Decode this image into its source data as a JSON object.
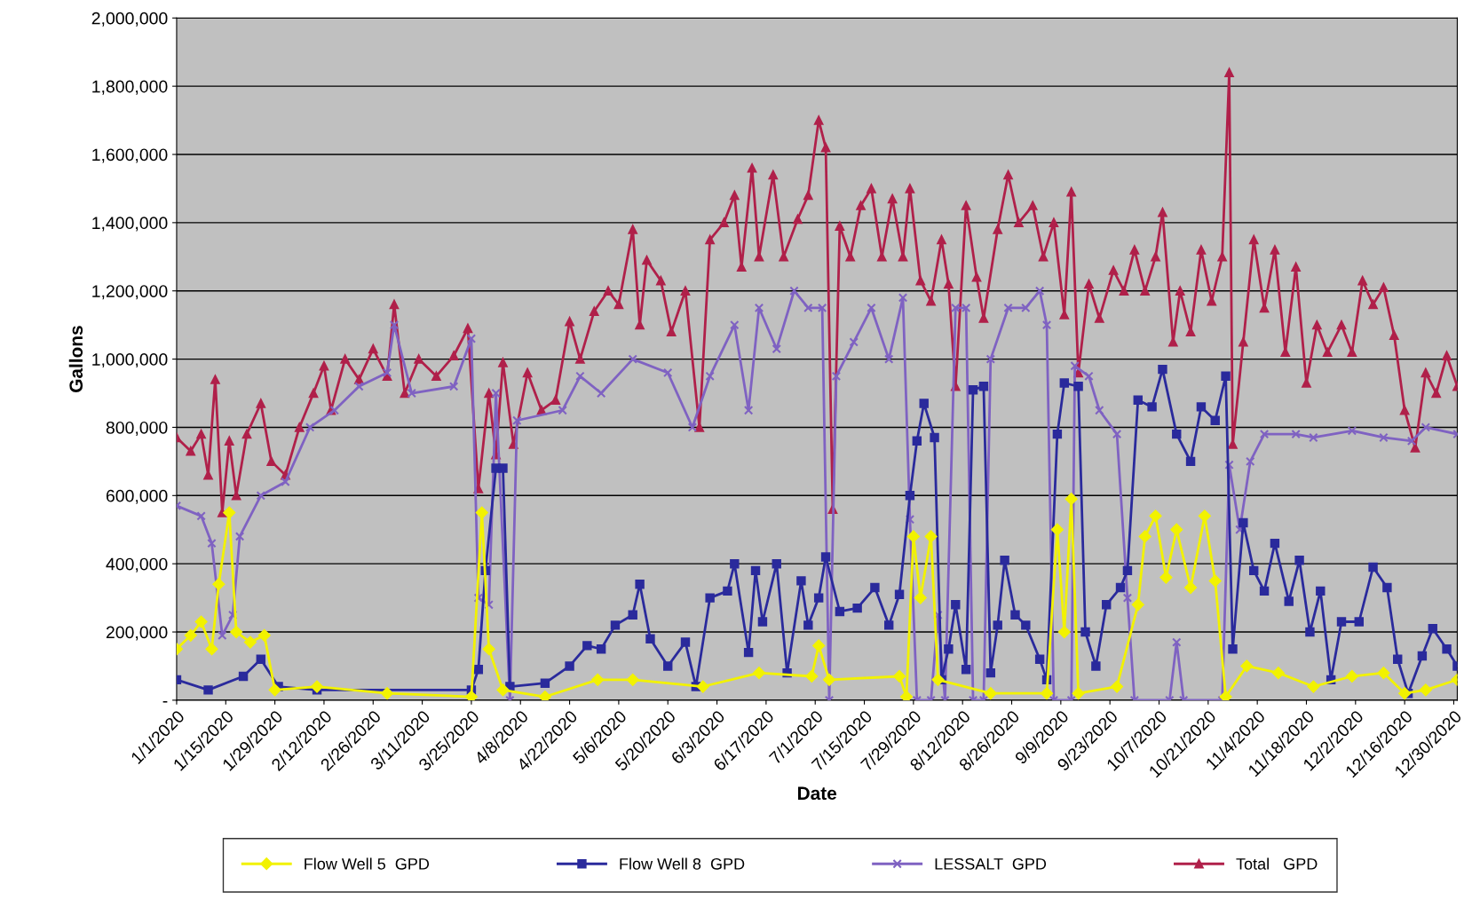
{
  "chart_data": {
    "type": "line",
    "xlabel": "Date",
    "ylabel": "Gallons",
    "grid": "y",
    "legend": "bottom",
    "xlim": [
      "2020-01-01",
      "2020-12-31"
    ],
    "xticks": [
      {
        "value": "2020-01-01",
        "label": "1/1/2020"
      },
      {
        "value": "2020-01-15",
        "label": "1/15/2020"
      },
      {
        "value": "2020-01-29",
        "label": "1/29/2020"
      },
      {
        "value": "2020-02-12",
        "label": "2/12/2020"
      },
      {
        "value": "2020-02-26",
        "label": "2/26/2020"
      },
      {
        "value": "2020-03-11",
        "label": "3/11/2020"
      },
      {
        "value": "2020-03-25",
        "label": "3/25/2020"
      },
      {
        "value": "2020-04-08",
        "label": "4/8/2020"
      },
      {
        "value": "2020-04-22",
        "label": "4/22/2020"
      },
      {
        "value": "2020-05-06",
        "label": "5/6/2020"
      },
      {
        "value": "2020-05-20",
        "label": "5/20/2020"
      },
      {
        "value": "2020-06-03",
        "label": "6/3/2020"
      },
      {
        "value": "2020-06-17",
        "label": "6/17/2020"
      },
      {
        "value": "2020-07-01",
        "label": "7/1/2020"
      },
      {
        "value": "2020-07-15",
        "label": "7/15/2020"
      },
      {
        "value": "2020-07-29",
        "label": "7/29/2020"
      },
      {
        "value": "2020-08-12",
        "label": "8/12/2020"
      },
      {
        "value": "2020-08-26",
        "label": "8/26/2020"
      },
      {
        "value": "2020-09-09",
        "label": "9/9/2020"
      },
      {
        "value": "2020-09-23",
        "label": "9/23/2020"
      },
      {
        "value": "2020-10-07",
        "label": "10/7/2020"
      },
      {
        "value": "2020-10-21",
        "label": "10/21/2020"
      },
      {
        "value": "2020-11-04",
        "label": "11/4/2020"
      },
      {
        "value": "2020-11-18",
        "label": "11/18/2020"
      },
      {
        "value": "2020-12-02",
        "label": "12/2/2020"
      },
      {
        "value": "2020-12-16",
        "label": "12/16/2020"
      },
      {
        "value": "2020-12-30",
        "label": "12/30/2020"
      }
    ],
    "ylim": [
      0,
      2000000
    ],
    "yticks": [
      {
        "value": 0,
        "label": "-"
      },
      {
        "value": 200000,
        "label": "200,000"
      },
      {
        "value": 400000,
        "label": "400,000"
      },
      {
        "value": 600000,
        "label": "600,000"
      },
      {
        "value": 800000,
        "label": "800,000"
      },
      {
        "value": 1000000,
        "label": "1,000,000"
      },
      {
        "value": 1200000,
        "label": "1,200,000"
      },
      {
        "value": 1400000,
        "label": "1,400,000"
      },
      {
        "value": 1600000,
        "label": "1,600,000"
      },
      {
        "value": 1800000,
        "label": "1,800,000"
      },
      {
        "value": 2000000,
        "label": "2,000,000"
      }
    ],
    "series": [
      {
        "name": "Flow Well 5  GPD",
        "color": "#f2f200",
        "marker": "diamond",
        "x": [
          "2020-01-01",
          "2020-01-05",
          "2020-01-08",
          "2020-01-11",
          "2020-01-13",
          "2020-01-16",
          "2020-01-18",
          "2020-01-22",
          "2020-01-26",
          "2020-01-29",
          "2020-02-10",
          "2020-03-01",
          "2020-03-25",
          "2020-03-28",
          "2020-03-30",
          "2020-04-03",
          "2020-04-15",
          "2020-04-30",
          "2020-05-10",
          "2020-05-30",
          "2020-06-15",
          "2020-06-30",
          "2020-07-02",
          "2020-07-05",
          "2020-07-25",
          "2020-07-27",
          "2020-07-29",
          "2020-07-31",
          "2020-08-03",
          "2020-08-05",
          "2020-08-20",
          "2020-09-05",
          "2020-09-08",
          "2020-09-10",
          "2020-09-12",
          "2020-09-14",
          "2020-09-25",
          "2020-10-01",
          "2020-10-03",
          "2020-10-06",
          "2020-10-09",
          "2020-10-12",
          "2020-10-16",
          "2020-10-20",
          "2020-10-23",
          "2020-10-26",
          "2020-11-01",
          "2020-11-10",
          "2020-11-20",
          "2020-12-01",
          "2020-12-10",
          "2020-12-16",
          "2020-12-22",
          "2020-12-31"
        ],
        "values": [
          150000,
          190000,
          230000,
          150000,
          340000,
          550000,
          200000,
          170000,
          190000,
          30000,
          40000,
          20000,
          10000,
          550000,
          150000,
          30000,
          10000,
          60000,
          60000,
          40000,
          80000,
          70000,
          160000,
          60000,
          70000,
          10000,
          480000,
          300000,
          480000,
          60000,
          20000,
          20000,
          500000,
          200000,
          590000,
          20000,
          40000,
          280000,
          480000,
          540000,
          360000,
          500000,
          330000,
          540000,
          350000,
          10000,
          100000,
          80000,
          40000,
          70000,
          80000,
          20000,
          30000,
          60000
        ]
      },
      {
        "name": "Flow Well 8  GPD",
        "color": "#2a2a9c",
        "marker": "square",
        "x": [
          "2020-01-01",
          "2020-01-10",
          "2020-01-20",
          "2020-01-25",
          "2020-01-30",
          "2020-02-10",
          "2020-03-25",
          "2020-03-27",
          "2020-03-29",
          "2020-04-01",
          "2020-04-03",
          "2020-04-05",
          "2020-04-15",
          "2020-04-22",
          "2020-04-27",
          "2020-05-01",
          "2020-05-05",
          "2020-05-10",
          "2020-05-12",
          "2020-05-15",
          "2020-05-20",
          "2020-05-25",
          "2020-05-28",
          "2020-06-01",
          "2020-06-06",
          "2020-06-08",
          "2020-06-12",
          "2020-06-14",
          "2020-06-16",
          "2020-06-20",
          "2020-06-23",
          "2020-06-27",
          "2020-06-29",
          "2020-07-02",
          "2020-07-04",
          "2020-07-08",
          "2020-07-13",
          "2020-07-18",
          "2020-07-22",
          "2020-07-25",
          "2020-07-28",
          "2020-07-30",
          "2020-08-01",
          "2020-08-04",
          "2020-08-06",
          "2020-08-08",
          "2020-08-10",
          "2020-08-13",
          "2020-08-15",
          "2020-08-18",
          "2020-08-20",
          "2020-08-22",
          "2020-08-24",
          "2020-08-27",
          "2020-08-30",
          "2020-09-03",
          "2020-09-05",
          "2020-09-08",
          "2020-09-10",
          "2020-09-14",
          "2020-09-16",
          "2020-09-19",
          "2020-09-22",
          "2020-09-26",
          "2020-09-28",
          "2020-10-01",
          "2020-10-05",
          "2020-10-08",
          "2020-10-12",
          "2020-10-16",
          "2020-10-19",
          "2020-10-23",
          "2020-10-26",
          "2020-10-28",
          "2020-10-31",
          "2020-11-03",
          "2020-11-06",
          "2020-11-09",
          "2020-11-13",
          "2020-11-16",
          "2020-11-19",
          "2020-11-22",
          "2020-11-25",
          "2020-11-28",
          "2020-12-03",
          "2020-12-07",
          "2020-12-11",
          "2020-12-14",
          "2020-12-17",
          "2020-12-21",
          "2020-12-24",
          "2020-12-28",
          "2020-12-31"
        ],
        "values": [
          60000,
          30000,
          70000,
          120000,
          40000,
          30000,
          30000,
          90000,
          380000,
          680000,
          680000,
          40000,
          50000,
          100000,
          160000,
          150000,
          220000,
          250000,
          340000,
          180000,
          100000,
          170000,
          40000,
          300000,
          320000,
          400000,
          140000,
          380000,
          230000,
          400000,
          80000,
          350000,
          220000,
          300000,
          420000,
          260000,
          270000,
          330000,
          220000,
          310000,
          600000,
          760000,
          870000,
          770000,
          60000,
          150000,
          280000,
          90000,
          910000,
          920000,
          80000,
          220000,
          410000,
          250000,
          220000,
          120000,
          60000,
          780000,
          930000,
          920000,
          200000,
          100000,
          280000,
          330000,
          380000,
          880000,
          860000,
          970000,
          780000,
          700000,
          860000,
          820000,
          950000,
          150000,
          520000,
          380000,
          320000,
          460000,
          290000,
          410000,
          200000,
          320000,
          60000,
          230000,
          230000,
          390000,
          330000,
          120000,
          20000,
          130000,
          210000,
          150000,
          100000
        ]
      },
      {
        "name": "LESSALT  GPD",
        "color": "#7f62c2",
        "marker": "cross",
        "x": [
          "2020-01-01",
          "2020-01-08",
          "2020-01-11",
          "2020-01-14",
          "2020-01-17",
          "2020-01-19",
          "2020-01-25",
          "2020-02-01",
          "2020-02-08",
          "2020-02-15",
          "2020-02-22",
          "2020-03-01",
          "2020-03-03",
          "2020-03-08",
          "2020-03-20",
          "2020-03-25",
          "2020-03-27",
          "2020-03-30",
          "2020-04-01",
          "2020-04-05",
          "2020-04-07",
          "2020-04-20",
          "2020-04-25",
          "2020-05-01",
          "2020-05-10",
          "2020-05-20",
          "2020-05-27",
          "2020-06-01",
          "2020-06-08",
          "2020-06-12",
          "2020-06-15",
          "2020-06-20",
          "2020-06-25",
          "2020-06-29",
          "2020-07-03",
          "2020-07-05",
          "2020-07-07",
          "2020-07-12",
          "2020-07-17",
          "2020-07-22",
          "2020-07-26",
          "2020-07-28",
          "2020-07-30",
          "2020-08-03",
          "2020-08-05",
          "2020-08-07",
          "2020-08-10",
          "2020-08-13",
          "2020-08-15",
          "2020-08-18",
          "2020-08-20",
          "2020-08-25",
          "2020-08-30",
          "2020-09-03",
          "2020-09-05",
          "2020-09-07",
          "2020-09-12",
          "2020-09-13",
          "2020-09-17",
          "2020-09-20",
          "2020-09-25",
          "2020-09-28",
          "2020-09-30",
          "2020-10-10",
          "2020-10-12",
          "2020-10-14",
          "2020-10-25",
          "2020-10-27",
          "2020-10-30",
          "2020-11-02",
          "2020-11-06",
          "2020-11-15",
          "2020-11-20",
          "2020-12-01",
          "2020-12-10",
          "2020-12-18",
          "2020-12-22",
          "2020-12-31"
        ],
        "values": [
          570000,
          540000,
          460000,
          190000,
          250000,
          480000,
          600000,
          640000,
          800000,
          850000,
          920000,
          960000,
          1100000,
          900000,
          920000,
          1060000,
          300000,
          280000,
          900000,
          0,
          820000,
          850000,
          950000,
          900000,
          1000000,
          960000,
          800000,
          950000,
          1100000,
          850000,
          1150000,
          1030000,
          1200000,
          1150000,
          1150000,
          0,
          950000,
          1050000,
          1150000,
          1000000,
          1180000,
          530000,
          0,
          0,
          250000,
          0,
          1150000,
          1150000,
          0,
          0,
          1000000,
          1150000,
          1150000,
          1200000,
          1100000,
          0,
          0,
          980000,
          950000,
          850000,
          780000,
          300000,
          0,
          0,
          170000,
          0,
          0,
          690000,
          500000,
          700000,
          780000,
          780000,
          770000,
          790000,
          770000,
          760000,
          800000,
          780000
        ]
      },
      {
        "name": "Total   GPD",
        "color": "#b0204a",
        "marker": "triangle",
        "x": [
          "2020-01-01",
          "2020-01-05",
          "2020-01-08",
          "2020-01-10",
          "2020-01-12",
          "2020-01-14",
          "2020-01-16",
          "2020-01-18",
          "2020-01-21",
          "2020-01-25",
          "2020-01-28",
          "2020-02-01",
          "2020-02-05",
          "2020-02-09",
          "2020-02-12",
          "2020-02-14",
          "2020-02-18",
          "2020-02-22",
          "2020-02-26",
          "2020-03-01",
          "2020-03-03",
          "2020-03-06",
          "2020-03-10",
          "2020-03-15",
          "2020-03-20",
          "2020-03-24",
          "2020-03-27",
          "2020-03-30",
          "2020-04-01",
          "2020-04-03",
          "2020-04-06",
          "2020-04-10",
          "2020-04-14",
          "2020-04-18",
          "2020-04-22",
          "2020-04-25",
          "2020-04-29",
          "2020-05-03",
          "2020-05-06",
          "2020-05-10",
          "2020-05-12",
          "2020-05-14",
          "2020-05-18",
          "2020-05-21",
          "2020-05-25",
          "2020-05-29",
          "2020-06-01",
          "2020-06-05",
          "2020-06-08",
          "2020-06-10",
          "2020-06-13",
          "2020-06-15",
          "2020-06-19",
          "2020-06-22",
          "2020-06-26",
          "2020-06-29",
          "2020-07-02",
          "2020-07-04",
          "2020-07-06",
          "2020-07-08",
          "2020-07-11",
          "2020-07-14",
          "2020-07-17",
          "2020-07-20",
          "2020-07-23",
          "2020-07-26",
          "2020-07-28",
          "2020-07-31",
          "2020-08-03",
          "2020-08-06",
          "2020-08-08",
          "2020-08-10",
          "2020-08-13",
          "2020-08-16",
          "2020-08-18",
          "2020-08-22",
          "2020-08-25",
          "2020-08-28",
          "2020-09-01",
          "2020-09-04",
          "2020-09-07",
          "2020-09-10",
          "2020-09-12",
          "2020-09-14",
          "2020-09-17",
          "2020-09-20",
          "2020-09-24",
          "2020-09-27",
          "2020-09-30",
          "2020-10-03",
          "2020-10-06",
          "2020-10-08",
          "2020-10-11",
          "2020-10-13",
          "2020-10-16",
          "2020-10-19",
          "2020-10-22",
          "2020-10-25",
          "2020-10-27",
          "2020-10-28",
          "2020-10-31",
          "2020-11-03",
          "2020-11-06",
          "2020-11-09",
          "2020-11-12",
          "2020-11-15",
          "2020-11-18",
          "2020-11-21",
          "2020-11-24",
          "2020-11-28",
          "2020-12-01",
          "2020-12-04",
          "2020-12-07",
          "2020-12-10",
          "2020-12-13",
          "2020-12-16",
          "2020-12-19",
          "2020-12-22",
          "2020-12-25",
          "2020-12-28",
          "2020-12-31"
        ],
        "values": [
          770000,
          730000,
          780000,
          660000,
          940000,
          550000,
          760000,
          600000,
          780000,
          870000,
          700000,
          660000,
          800000,
          900000,
          980000,
          850000,
          1000000,
          940000,
          1030000,
          950000,
          1160000,
          900000,
          1000000,
          950000,
          1010000,
          1090000,
          620000,
          900000,
          720000,
          990000,
          750000,
          960000,
          850000,
          880000,
          1110000,
          1000000,
          1140000,
          1200000,
          1160000,
          1380000,
          1100000,
          1290000,
          1230000,
          1080000,
          1200000,
          800000,
          1350000,
          1400000,
          1480000,
          1270000,
          1560000,
          1300000,
          1540000,
          1300000,
          1410000,
          1480000,
          1700000,
          1620000,
          560000,
          1390000,
          1300000,
          1450000,
          1500000,
          1300000,
          1470000,
          1300000,
          1500000,
          1230000,
          1170000,
          1350000,
          1220000,
          920000,
          1450000,
          1240000,
          1120000,
          1380000,
          1540000,
          1400000,
          1450000,
          1300000,
          1400000,
          1130000,
          1490000,
          960000,
          1220000,
          1120000,
          1260000,
          1200000,
          1320000,
          1200000,
          1300000,
          1430000,
          1050000,
          1200000,
          1080000,
          1320000,
          1170000,
          1300000,
          1840000,
          750000,
          1050000,
          1350000,
          1150000,
          1320000,
          1020000,
          1270000,
          930000,
          1100000,
          1020000,
          1100000,
          1020000,
          1230000,
          1160000,
          1210000,
          1070000,
          850000,
          740000,
          960000,
          900000,
          1010000,
          920000
        ]
      }
    ]
  }
}
